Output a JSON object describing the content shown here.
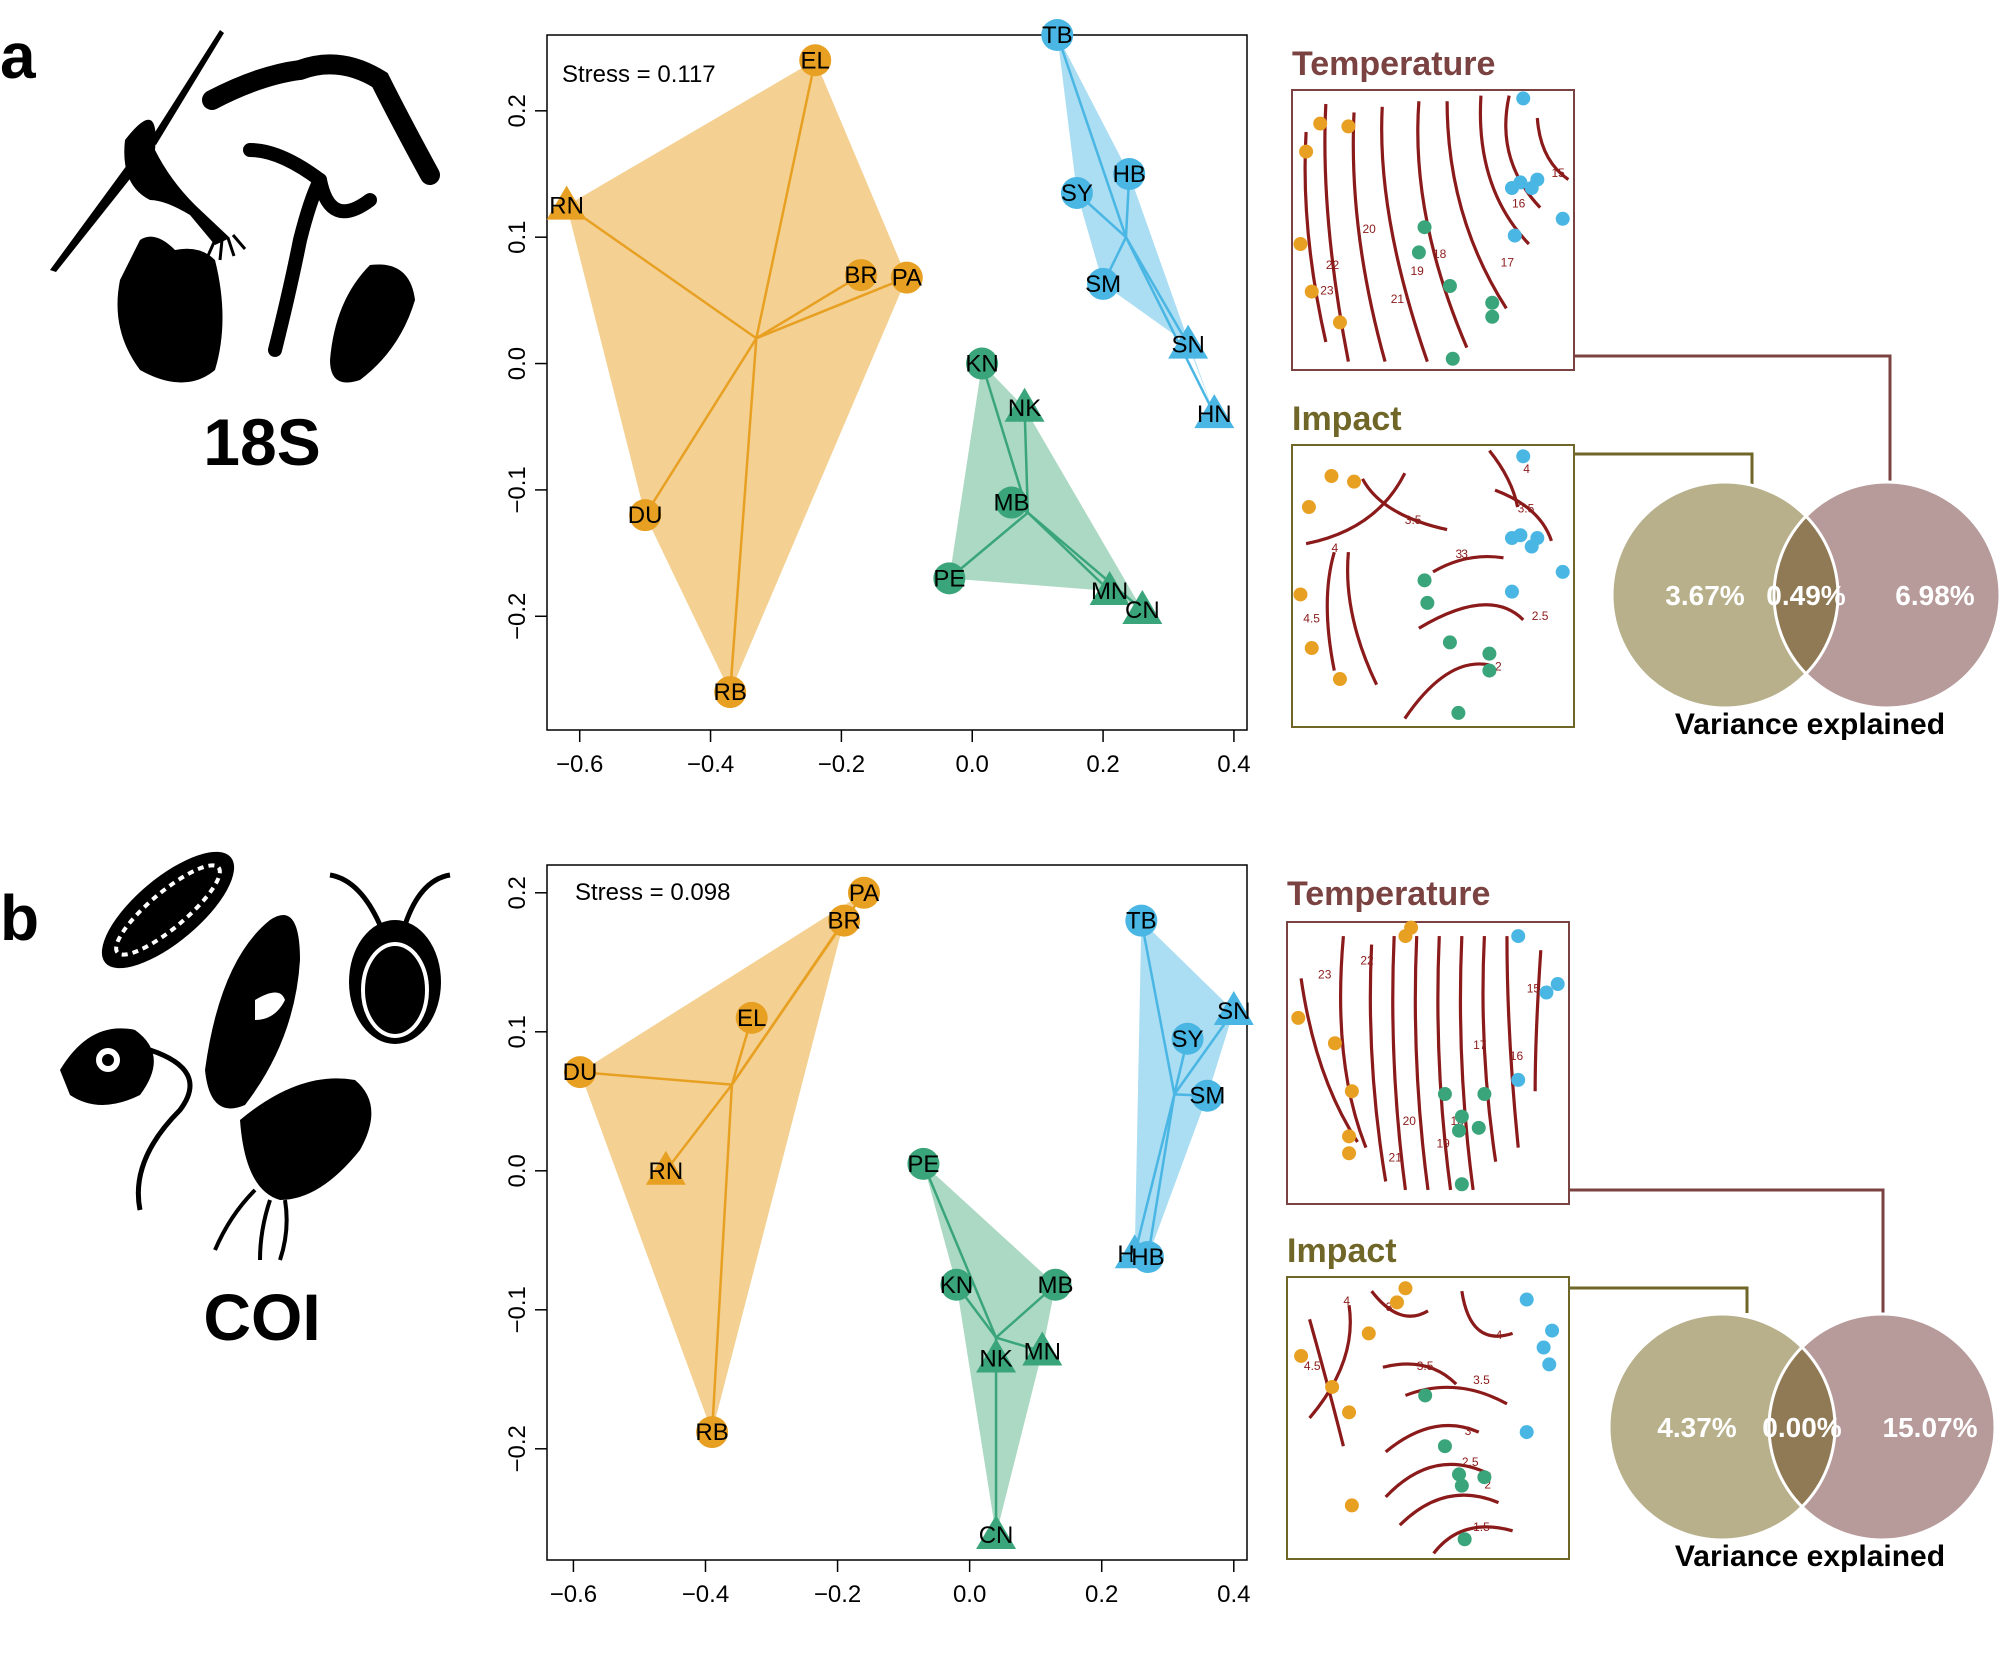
{
  "colors": {
    "orange": "#e8a023",
    "orange_fill": "#f3cf8c",
    "green": "#3aa57a",
    "green_fill": "#a8d7c0",
    "blue": "#4ab6e3",
    "blue_fill": "#a6dbf2",
    "contour": "#8b1a1a",
    "temperature_title": "#7a4342",
    "temperature_frame": "#7a4342",
    "impact_title": "#6f6628",
    "impact_frame": "#6f6628",
    "venn_impact": "#b8b08b",
    "venn_temp": "#b79b9b",
    "venn_overlap": "#8f7a55",
    "silhouette": "#000000"
  },
  "panels": [
    {
      "letter": "a",
      "marker": "18S",
      "stress_label": "Stress = 0.117",
      "icon_names": [
        "copepod-silhouette-icon",
        "polychaete-silhouette-icon",
        "hydroid-silhouette-icon",
        "tunicate-silhouette-icon",
        "bivalve-silhouette-icon"
      ],
      "chart_data": {
        "type": "scatter",
        "xlim": [
          -0.65,
          0.42
        ],
        "ylim": [
          -0.29,
          0.26
        ],
        "x_ticks": [
          -0.6,
          -0.4,
          -0.2,
          0.0,
          0.2,
          0.4
        ],
        "x_tick_labels": [
          "−0.6",
          "−0.4",
          "−0.2",
          "0.0",
          "0.2",
          "0.4"
        ],
        "y_ticks": [
          -0.2,
          -0.1,
          0.0,
          0.1,
          0.2
        ],
        "y_tick_labels": [
          "−0.2",
          "−0.1",
          "0.0",
          "0.1",
          "0.2"
        ],
        "groups": [
          {
            "color": "orange",
            "centroid": [
              -0.33,
              0.02
            ],
            "hull": [
              "RN",
              "EL",
              "PA",
              "RB",
              "DU"
            ],
            "points": [
              {
                "label": "EL",
                "x": -0.24,
                "y": 0.24,
                "shape": "circle"
              },
              {
                "label": "RN",
                "x": -0.62,
                "y": 0.125,
                "shape": "triangle"
              },
              {
                "label": "BR",
                "x": -0.17,
                "y": 0.07,
                "shape": "circle"
              },
              {
                "label": "PA",
                "x": -0.1,
                "y": 0.068,
                "shape": "circle"
              },
              {
                "label": "DU",
                "x": -0.5,
                "y": -0.12,
                "shape": "circle"
              },
              {
                "label": "RB",
                "x": -0.37,
                "y": -0.26,
                "shape": "circle"
              }
            ]
          },
          {
            "color": "blue",
            "centroid": [
              0.235,
              0.1
            ],
            "hull": [
              "TB",
              "HB",
              "HN",
              "SN",
              "SM",
              "SY"
            ],
            "points": [
              {
                "label": "TB",
                "x": 0.13,
                "y": 0.26,
                "shape": "circle"
              },
              {
                "label": "HB",
                "x": 0.24,
                "y": 0.15,
                "shape": "circle"
              },
              {
                "label": "SY",
                "x": 0.16,
                "y": 0.135,
                "shape": "circle"
              },
              {
                "label": "SM",
                "x": 0.2,
                "y": 0.063,
                "shape": "circle"
              },
              {
                "label": "SN",
                "x": 0.33,
                "y": 0.015,
                "shape": "triangle"
              },
              {
                "label": "HN",
                "x": 0.37,
                "y": -0.04,
                "shape": "triangle"
              }
            ]
          },
          {
            "color": "green",
            "centroid": [
              0.085,
              -0.118
            ],
            "hull": [
              "KN",
              "NK",
              "CN",
              "MN",
              "PE"
            ],
            "points": [
              {
                "label": "KN",
                "x": 0.015,
                "y": 0.0,
                "shape": "circle"
              },
              {
                "label": "NK",
                "x": 0.08,
                "y": -0.035,
                "shape": "triangle"
              },
              {
                "label": "MB",
                "x": 0.06,
                "y": -0.11,
                "shape": "circle"
              },
              {
                "label": "PE",
                "x": -0.035,
                "y": -0.17,
                "shape": "circle"
              },
              {
                "label": "MN",
                "x": 0.21,
                "y": -0.18,
                "shape": "triangle"
              },
              {
                "label": "CN",
                "x": 0.26,
                "y": -0.195,
                "shape": "triangle"
              }
            ]
          }
        ]
      },
      "temperature": {
        "title": "Temperature",
        "contour_labels": [
          "15",
          "16",
          "17",
          "18",
          "19",
          "20",
          "21",
          "22",
          "23"
        ],
        "points": [
          [
            "orange",
            0.1,
            0.12
          ],
          [
            "orange",
            0.2,
            0.13
          ],
          [
            "orange",
            0.05,
            0.22
          ],
          [
            "orange",
            0.03,
            0.55
          ],
          [
            "orange",
            0.07,
            0.72
          ],
          [
            "orange",
            0.17,
            0.83
          ],
          [
            "blue",
            0.82,
            0.03
          ],
          [
            "blue",
            0.81,
            0.33
          ],
          [
            "blue",
            0.85,
            0.35
          ],
          [
            "blue",
            0.87,
            0.32
          ],
          [
            "blue",
            0.78,
            0.35
          ],
          [
            "blue",
            0.79,
            0.52
          ],
          [
            "blue",
            0.96,
            0.46
          ],
          [
            "green",
            0.47,
            0.49
          ],
          [
            "green",
            0.45,
            0.58
          ],
          [
            "green",
            0.56,
            0.7
          ],
          [
            "green",
            0.71,
            0.76
          ],
          [
            "green",
            0.71,
            0.81
          ],
          [
            "green",
            0.57,
            0.96
          ]
        ]
      },
      "impact": {
        "title": "Impact",
        "contour_labels": [
          "4",
          "3.5",
          "3",
          "3.5",
          "4",
          "4.5",
          "3",
          "2.5",
          "2"
        ],
        "points": [
          [
            "orange",
            0.14,
            0.11
          ],
          [
            "orange",
            0.22,
            0.13
          ],
          [
            "orange",
            0.06,
            0.22
          ],
          [
            "orange",
            0.03,
            0.53
          ],
          [
            "orange",
            0.07,
            0.72
          ],
          [
            "orange",
            0.17,
            0.83
          ],
          [
            "blue",
            0.82,
            0.04
          ],
          [
            "blue",
            0.81,
            0.32
          ],
          [
            "blue",
            0.85,
            0.36
          ],
          [
            "blue",
            0.87,
            0.33
          ],
          [
            "blue",
            0.78,
            0.33
          ],
          [
            "blue",
            0.78,
            0.52
          ],
          [
            "blue",
            0.96,
            0.45
          ],
          [
            "green",
            0.47,
            0.48
          ],
          [
            "green",
            0.48,
            0.56
          ],
          [
            "green",
            0.56,
            0.7
          ],
          [
            "green",
            0.7,
            0.74
          ],
          [
            "green",
            0.7,
            0.8
          ],
          [
            "green",
            0.59,
            0.95
          ]
        ]
      },
      "venn": {
        "left_value": "3.67%",
        "overlap_value": "0.49%",
        "right_value": "6.98%",
        "caption": "Variance explained"
      }
    },
    {
      "letter": "b",
      "marker": "COI",
      "stress_label": "Stress = 0.098",
      "icon_names": [
        "diatom-silhouette-icon",
        "ciliate-silhouette-icon",
        "dinoflagellate-silhouette-icon",
        "flagellate-silhouette-icon",
        "rotifer-silhouette-icon"
      ],
      "chart_data": {
        "type": "scatter",
        "xlim": [
          -0.64,
          0.42
        ],
        "ylim": [
          -0.28,
          0.22
        ],
        "x_ticks": [
          -0.6,
          -0.4,
          -0.2,
          0.0,
          0.2,
          0.4
        ],
        "x_tick_labels": [
          "−0.6",
          "−0.4",
          "−0.2",
          "0.0",
          "0.2",
          "0.4"
        ],
        "y_ticks": [
          -0.2,
          -0.1,
          0.0,
          0.1,
          0.2
        ],
        "y_tick_labels": [
          "−0.2",
          "−0.1",
          "0.0",
          "0.1",
          "0.2"
        ],
        "groups": [
          {
            "color": "orange",
            "centroid": [
              -0.36,
              0.062
            ],
            "hull": [
              "DU",
              "PA",
              "BR",
              "RB"
            ],
            "points": [
              {
                "label": "PA",
                "x": -0.16,
                "y": 0.2,
                "shape": "circle"
              },
              {
                "label": "BR",
                "x": -0.19,
                "y": 0.18,
                "shape": "circle"
              },
              {
                "label": "EL",
                "x": -0.33,
                "y": 0.11,
                "shape": "circle"
              },
              {
                "label": "DU",
                "x": -0.59,
                "y": 0.071,
                "shape": "circle"
              },
              {
                "label": "RN",
                "x": -0.46,
                "y": 0.0,
                "shape": "triangle"
              },
              {
                "label": "RB",
                "x": -0.39,
                "y": -0.188,
                "shape": "circle"
              }
            ]
          },
          {
            "color": "blue",
            "centroid": [
              0.31,
              0.055
            ],
            "hull": [
              "TB",
              "SN",
              "SM",
              "HB",
              "HN"
            ],
            "points": [
              {
                "label": "TB",
                "x": 0.26,
                "y": 0.18,
                "shape": "circle"
              },
              {
                "label": "SN",
                "x": 0.4,
                "y": 0.115,
                "shape": "triangle"
              },
              {
                "label": "SY",
                "x": 0.33,
                "y": 0.095,
                "shape": "circle"
              },
              {
                "label": "SM",
                "x": 0.36,
                "y": 0.054,
                "shape": "circle"
              },
              {
                "label": "HN",
                "x": 0.25,
                "y": -0.06,
                "shape": "triangle"
              },
              {
                "label": "HB",
                "x": 0.27,
                "y": -0.062,
                "shape": "circle"
              }
            ]
          },
          {
            "color": "green",
            "centroid": [
              0.04,
              -0.12
            ],
            "hull": [
              "PE",
              "MB",
              "MN",
              "CN",
              "KN"
            ],
            "points": [
              {
                "label": "PE",
                "x": -0.07,
                "y": 0.005,
                "shape": "circle"
              },
              {
                "label": "KN",
                "x": -0.02,
                "y": -0.082,
                "shape": "circle"
              },
              {
                "label": "MB",
                "x": 0.13,
                "y": -0.082,
                "shape": "circle"
              },
              {
                "label": "NK",
                "x": 0.04,
                "y": -0.135,
                "shape": "triangle"
              },
              {
                "label": "MN",
                "x": 0.11,
                "y": -0.13,
                "shape": "triangle"
              },
              {
                "label": "CN",
                "x": 0.04,
                "y": -0.262,
                "shape": "triangle"
              }
            ]
          }
        ]
      },
      "temperature": {
        "title": "Temperature",
        "contour_labels": [
          "23",
          "22",
          "21",
          "20",
          "19",
          "18",
          "17",
          "16",
          "15"
        ],
        "points": [
          [
            "orange",
            0.44,
            0.02
          ],
          [
            "orange",
            0.42,
            0.05
          ],
          [
            "orange",
            0.04,
            0.34
          ],
          [
            "orange",
            0.17,
            0.43
          ],
          [
            "orange",
            0.23,
            0.6
          ],
          [
            "orange",
            0.22,
            0.76
          ],
          [
            "orange",
            0.22,
            0.82
          ],
          [
            "blue",
            0.82,
            0.05
          ],
          [
            "blue",
            0.92,
            0.25
          ],
          [
            "blue",
            0.96,
            0.22
          ],
          [
            "blue",
            0.82,
            0.56
          ],
          [
            "green",
            0.56,
            0.61
          ],
          [
            "green",
            0.7,
            0.61
          ],
          [
            "green",
            0.62,
            0.69
          ],
          [
            "green",
            0.61,
            0.74
          ],
          [
            "green",
            0.68,
            0.73
          ],
          [
            "green",
            0.62,
            0.93
          ]
        ]
      },
      "impact": {
        "title": "Impact",
        "contour_labels": [
          "4",
          "4.5",
          "3",
          "3.5",
          "3.5",
          "4",
          "3",
          "2.5",
          "2",
          "1.5"
        ],
        "points": [
          [
            "orange",
            0.42,
            0.04
          ],
          [
            "orange",
            0.39,
            0.09
          ],
          [
            "orange",
            0.29,
            0.2
          ],
          [
            "orange",
            0.05,
            0.28
          ],
          [
            "orange",
            0.16,
            0.39
          ],
          [
            "orange",
            0.22,
            0.48
          ],
          [
            "orange",
            0.23,
            0.81
          ],
          [
            "blue",
            0.85,
            0.08
          ],
          [
            "blue",
            0.94,
            0.19
          ],
          [
            "blue",
            0.91,
            0.25
          ],
          [
            "blue",
            0.93,
            0.31
          ],
          [
            "blue",
            0.85,
            0.55
          ],
          [
            "green",
            0.49,
            0.42
          ],
          [
            "green",
            0.56,
            0.6
          ],
          [
            "green",
            0.61,
            0.7
          ],
          [
            "green",
            0.7,
            0.71
          ],
          [
            "green",
            0.62,
            0.74
          ],
          [
            "green",
            0.63,
            0.93
          ]
        ]
      },
      "venn": {
        "left_value": "4.37%",
        "overlap_value": "0.00%",
        "right_value": "15.07%",
        "caption": "Variance explained"
      }
    }
  ]
}
